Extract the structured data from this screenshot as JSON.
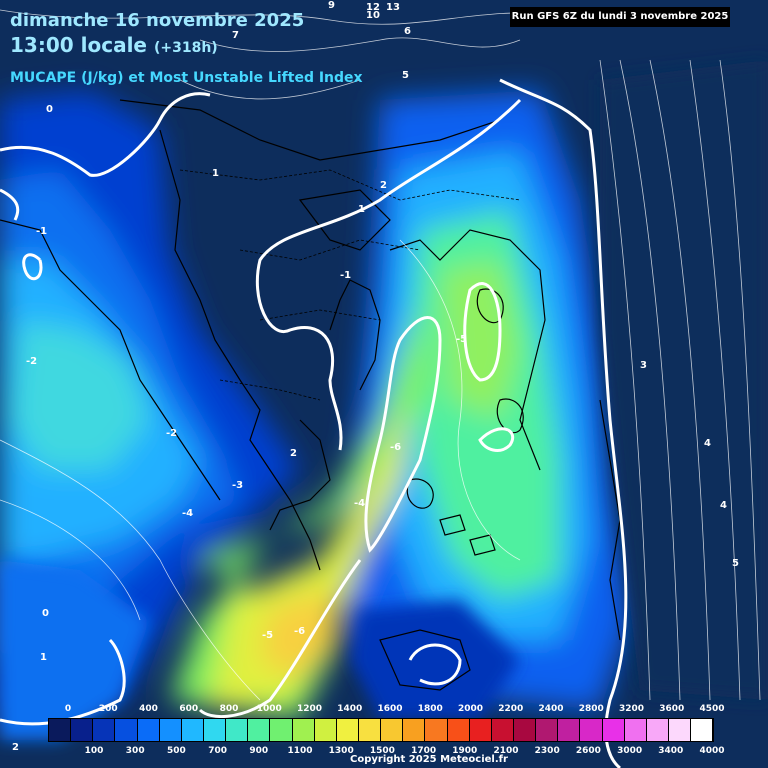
{
  "header": {
    "date": "dimanche 16 novembre 2025",
    "time": "13:00 locale",
    "offset": "(+318h)",
    "parameter": "MUCAPE (J/kg) et Most Unstable Lifted Index",
    "run": "Run GFS 6Z du lundi 3 novembre 2025"
  },
  "legend": {
    "top_labels": [
      "0",
      "200",
      "400",
      "600",
      "800",
      "1000",
      "1200",
      "1400",
      "1600",
      "1800",
      "2000",
      "2200",
      "2400",
      "2800",
      "3200",
      "3600",
      "4500"
    ],
    "bottom_labels": [
      "100",
      "300",
      "500",
      "700",
      "900",
      "1100",
      "1300",
      "1500",
      "1700",
      "1900",
      "2100",
      "2300",
      "2600",
      "3000",
      "3400",
      "4000"
    ],
    "colors": [
      "#0a1a5c",
      "#08208c",
      "#0634b8",
      "#0650e0",
      "#0a6cf8",
      "#1490ff",
      "#20b8ff",
      "#30d8f0",
      "#40e8c8",
      "#50f0a0",
      "#70f070",
      "#a0f050",
      "#d0f040",
      "#f0f040",
      "#f8e040",
      "#f8c830",
      "#f8a020",
      "#f87820",
      "#f85018",
      "#e82020",
      "#c81030",
      "#a80840",
      "#b01870",
      "#c020a0",
      "#d828c8",
      "#e830e8",
      "#f070f0",
      "#f8a8f8",
      "#fcd8fc",
      "#ffffff"
    ]
  },
  "contour_labels": [
    "0",
    "1",
    "2",
    "1",
    "-1",
    "-2",
    "-3",
    "-4",
    "-5",
    "-6",
    "2",
    "3",
    "4",
    "5",
    "9",
    "10",
    "12",
    "13",
    "6",
    "7",
    "-1",
    "-2",
    "-4",
    "-5",
    "-6",
    "0",
    "1",
    "2",
    "4",
    "5"
  ],
  "copyright": "Copyright 2025 Meteociel.fr"
}
